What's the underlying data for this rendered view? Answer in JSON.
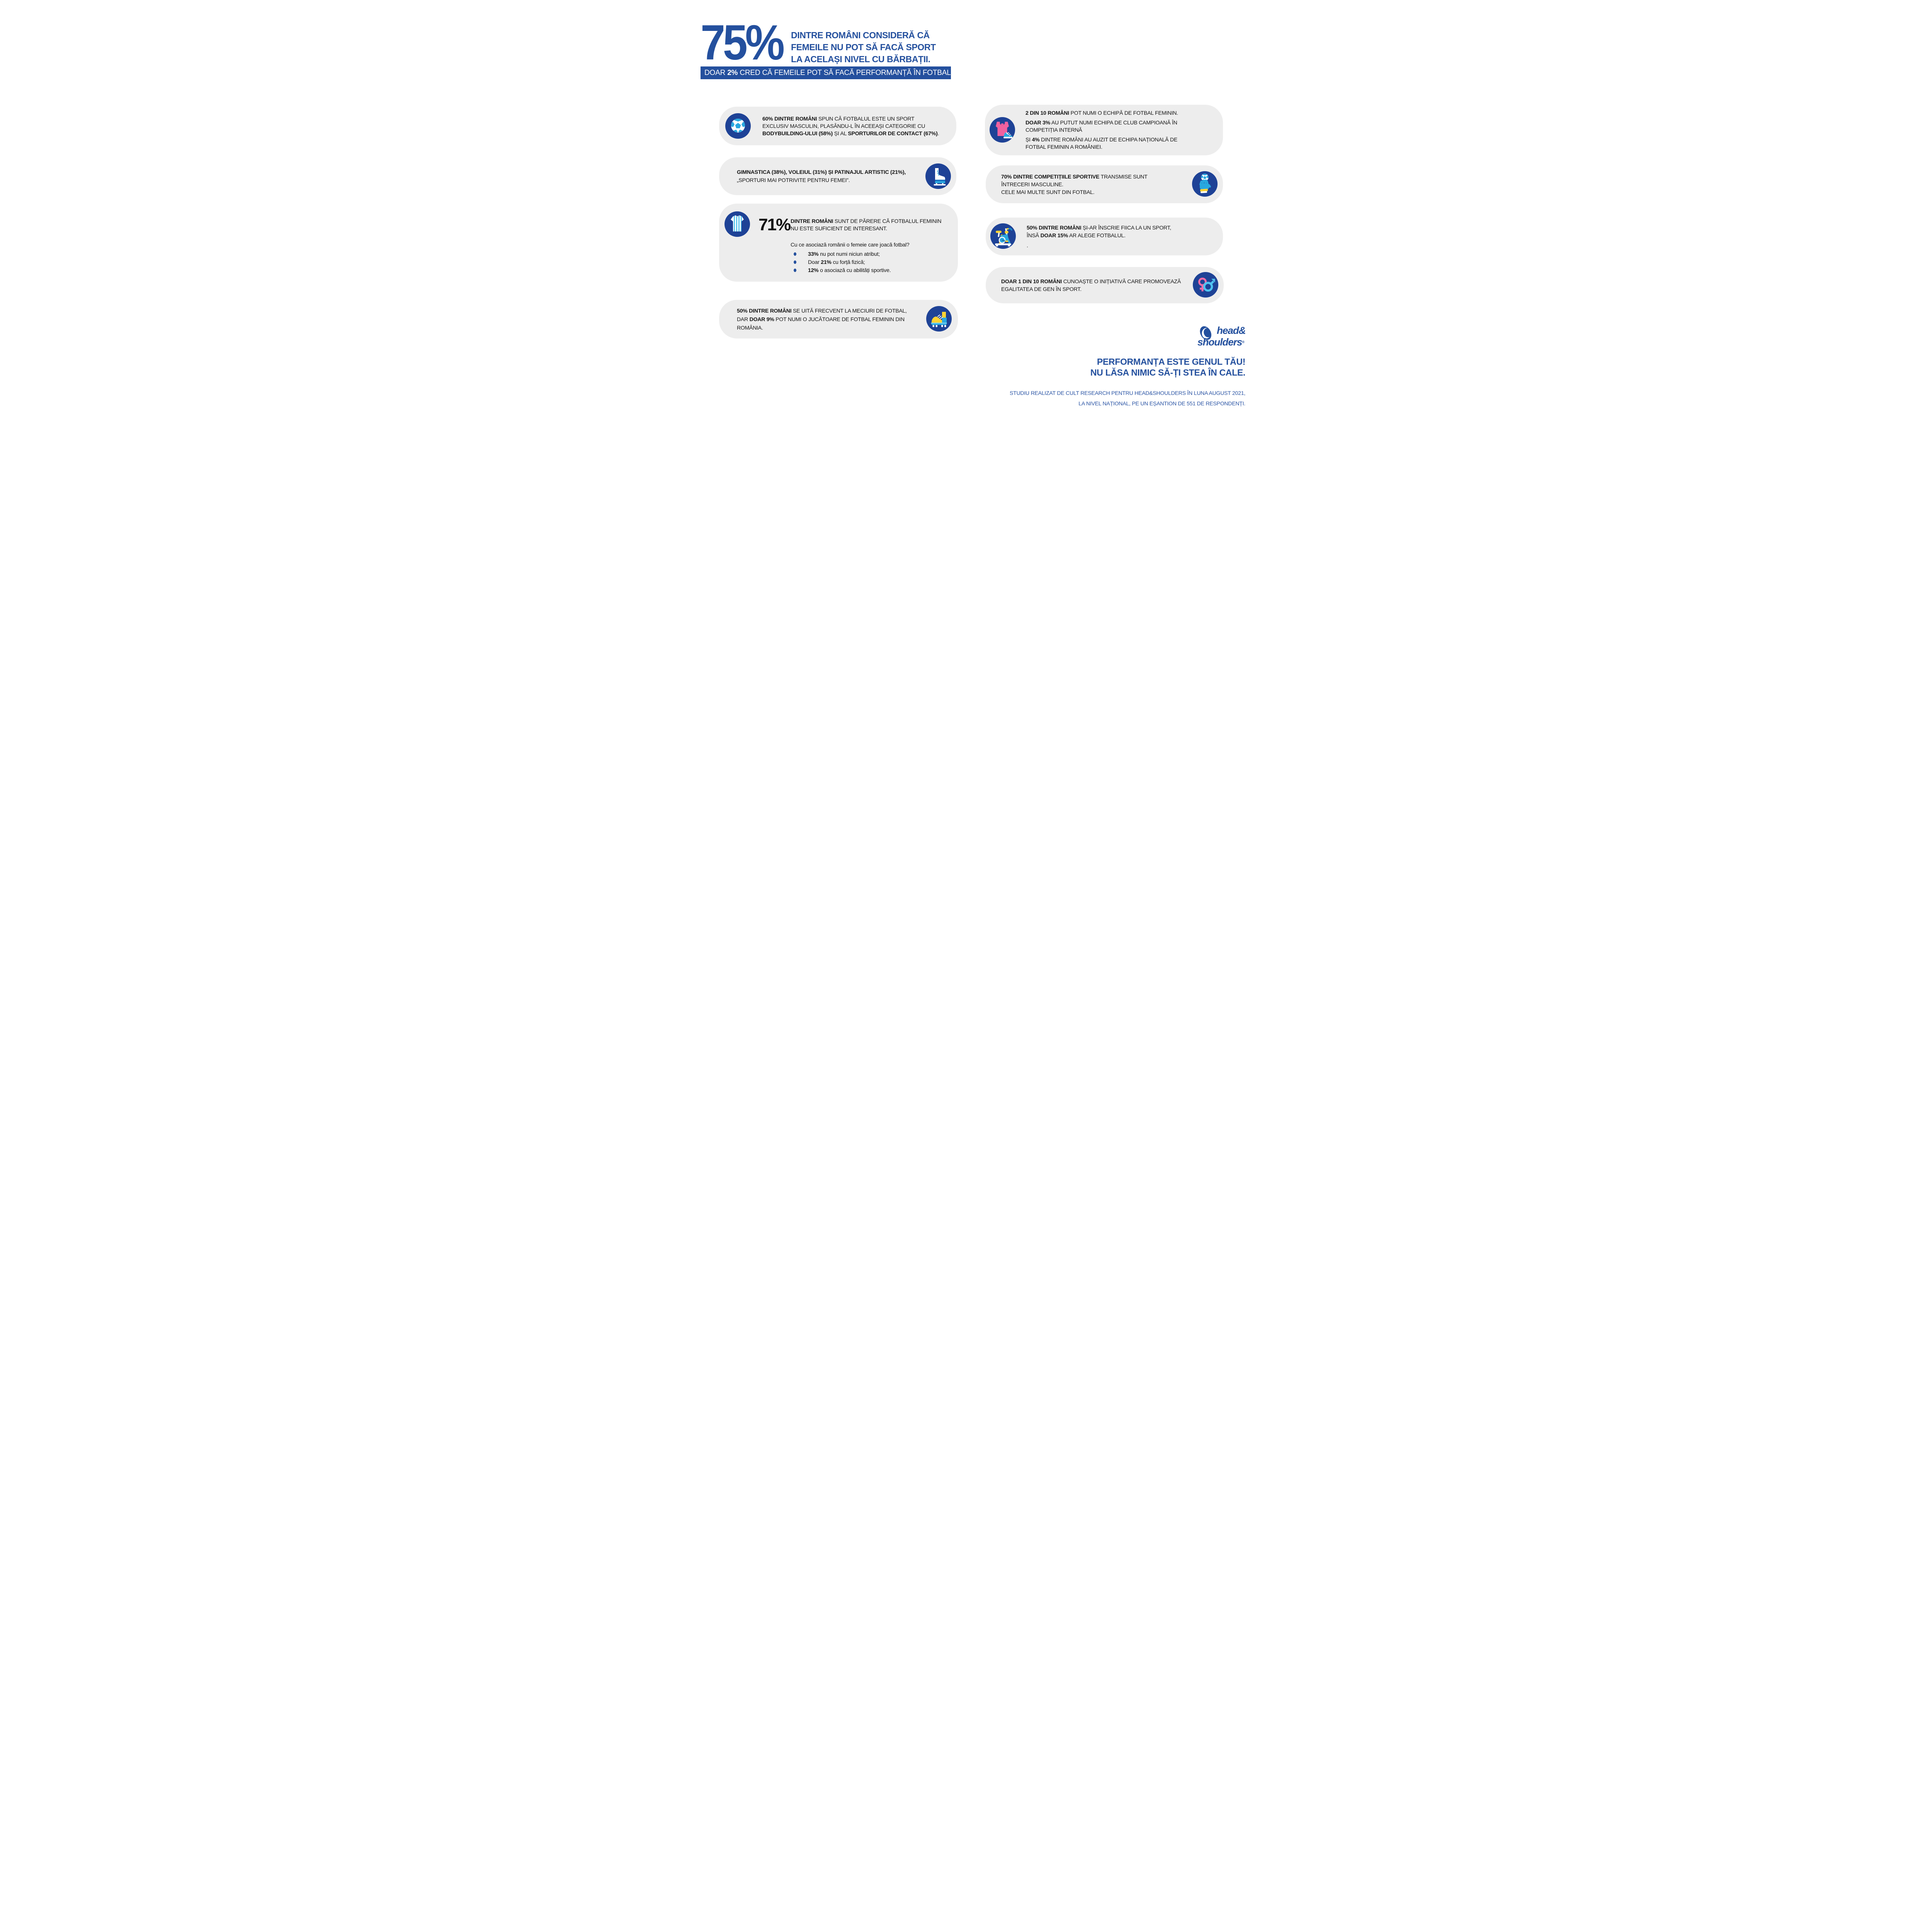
{
  "colors": {
    "primary_blue": "#24509E",
    "circle_blue": "#1E4296",
    "accent_light_blue": "#29A8E0",
    "sky_blue": "#7FD4F2",
    "pink": "#F0619F",
    "dark_pink": "#C73B7E",
    "yellow": "#FFD233",
    "card_gray": "#EDEDED",
    "text_black": "#161616",
    "white": "#FFFFFF"
  },
  "header": {
    "stat": "75%",
    "headline_lines": [
      "DINTRE ROMÂNI CONSIDERĂ CĂ",
      "FEMEILE NU POT SĂ FACĂ SPORT",
      "LA ACELAȘI NIVEL CU BĂRBAȚII."
    ],
    "banner": [
      {
        "text": "DOAR ",
        "bold": false
      },
      {
        "text": "2%",
        "bold": true
      },
      {
        "text": " CRED CĂ FEMEILE POT SĂ FACĂ PERFORMANȚĂ ÎN FOTBAL.",
        "bold": false
      }
    ]
  },
  "cards_left": [
    {
      "icon": "soccer-ball-icon",
      "lines": [
        [
          {
            "text": "60% DINTRE ROMÂNI",
            "bold": true
          },
          {
            "text": " SPUN CĂ FOTBALUL ESTE UN SPORT",
            "bold": false
          }
        ],
        [
          {
            "text": "EXCLUSIV MASCULIN, PLASÂNDU-L ÎN ACEEAȘI CATEGORIE CU",
            "bold": false
          }
        ],
        [
          {
            "text": "BODYBUILDING-ULUI (58%)",
            "bold": true
          },
          {
            "text": " ȘI AL ",
            "bold": false
          },
          {
            "text": "SPORTURILOR DE CONTACT (67%)",
            "bold": true
          },
          {
            "text": ".",
            "bold": false
          }
        ]
      ]
    },
    {
      "icon": "ice-skate-icon",
      "lines": [
        [
          {
            "text": "GIMNASTICA (38%), VOLEIUL (31%) ȘI PATINAJUL ARTISTIC (21%),",
            "bold": true
          }
        ],
        [
          {
            "text": "„SPORTURI MAI POTRIVITE PENTRU FEMEI”.",
            "bold": false
          }
        ]
      ]
    },
    {
      "icon": "jersey-icon",
      "stat": "71%",
      "lines": [
        [
          {
            "text": "DINTRE ROMÂNI",
            "bold": true
          },
          {
            "text": " SUNT DE PĂRERE CĂ FOTBALUL FEMININ",
            "bold": false
          }
        ],
        [
          {
            "text": "NU  ESTE SUFICIENT DE INTERESANT.",
            "bold": false
          }
        ]
      ],
      "question": "Cu ce asociază românii o femeie care joacă fotbal?",
      "bullets": [
        [
          {
            "text": "33%",
            "bold": true
          },
          {
            "text": " nu pot numi niciun atribut;",
            "bold": false
          }
        ],
        [
          {
            "text": "Doar ",
            "bold": false
          },
          {
            "text": "21%",
            "bold": true
          },
          {
            "text": " cu forță fizică;",
            "bold": false
          }
        ],
        [
          {
            "text": "12%",
            "bold": true
          },
          {
            "text": " o asociază cu abilități sportive.",
            "bold": false
          }
        ]
      ]
    },
    {
      "icon": "football-boot-icon",
      "lines": [
        [
          {
            "text": "50% DINTRE ROMÂNI",
            "bold": true
          },
          {
            "text": " SE UITĂ FRECVENT LA MECIURI DE FOTBAL,",
            "bold": false
          }
        ],
        [
          {
            "text": "DAR ",
            "bold": false
          },
          {
            "text": "DOAR 9%",
            "bold": true
          },
          {
            "text": " POT NUMI O JUCĂTOARE DE FOTBAL FEMININ DIN",
            "bold": false
          }
        ],
        [
          {
            "text": "ROMÂNIA.",
            "bold": false
          }
        ]
      ]
    }
  ],
  "cards_right": [
    {
      "icon": "tank-top-sneaker-icon",
      "lines": [
        [
          {
            "text": "2 DIN 10 ROMÂNI",
            "bold": true
          },
          {
            "text": " POT NUMI O ECHIPĂ DE FOTBAL FEMININ.",
            "bold": false
          }
        ],
        [
          {
            "text": "DOAR 3%",
            "bold": true
          },
          {
            "text": " AU PUTUT NUMI ECHIPA DE CLUB CAMPIOANĂ ÎN",
            "bold": false
          }
        ],
        [
          {
            "text": "COMPETIȚIA INTERNĂ",
            "bold": false
          }
        ],
        [
          {
            "text": "ȘI ",
            "bold": false
          },
          {
            "text": "4%",
            "bold": true
          },
          {
            "text": " DINTRE ROMÂNI AU AUZIT DE ECHIPA NAȚIONALĂ DE",
            "bold": false
          }
        ],
        [
          {
            "text": "FOTBAL FEMININ A ROMÂNIEI.",
            "bold": false
          }
        ]
      ]
    },
    {
      "icon": "goalkeeper-glove-ball-icon",
      "lines": [
        [
          {
            "text": "70% DINTRE COMPETIȚIILE SPORTIVE",
            "bold": true
          },
          {
            "text": " TRANSMISE SUNT",
            "bold": false
          }
        ],
        [
          {
            "text": "ÎNTRECERI MASCULINE.",
            "bold": false
          }
        ],
        [
          {
            "text": "CELE MAI MULTE SUNT DIN FOTBAL.",
            "bold": false
          }
        ]
      ]
    },
    {
      "icon": "exercise-bike-icon",
      "lines": [
        [
          {
            "text": "50% DINTRE ROMÂNI",
            "bold": true
          },
          {
            "text": " ȘI-AR ÎNSCRIE FIICA LA UN SPORT,",
            "bold": false
          }
        ],
        [
          {
            "text": "ÎNSĂ ",
            "bold": false
          },
          {
            "text": "DOAR 15%",
            "bold": true
          },
          {
            "text": " AR ALEGE FOTBALUL.",
            "bold": false
          }
        ],
        [
          {
            "text": ".",
            "bold": false
          }
        ]
      ]
    },
    {
      "icon": "gender-symbols-icon",
      "lines": [
        [
          {
            "text": "DOAR 1 DIN 10 ROMÂNI",
            "bold": true
          },
          {
            "text": " CUNOAȘTE O INIȚIATIVĂ CARE PROMOVEAZĂ",
            "bold": false
          }
        ],
        [
          {
            "text": "EGALITATEA DE GEN ÎN SPORT.",
            "bold": false
          }
        ]
      ]
    }
  ],
  "footer": {
    "logo": {
      "word1": "head&",
      "word2": "shoulders",
      "reg": "®"
    },
    "tagline_lines": [
      "PERFORMANȚA ESTE GENUL TĂU!",
      "NU LĂSA NIMIC SĂ-ȚI STEA ÎN CALE."
    ],
    "source_lines": [
      "STUDIU REALIZAT DE CULT RESEARCH PENTRU HEAD&SHOULDERS ÎN LUNA AUGUST 2021,",
      "LA NIVEL NAȚIONAL, PE UN EȘANTION DE 551 DE RESPONDENȚI."
    ]
  }
}
